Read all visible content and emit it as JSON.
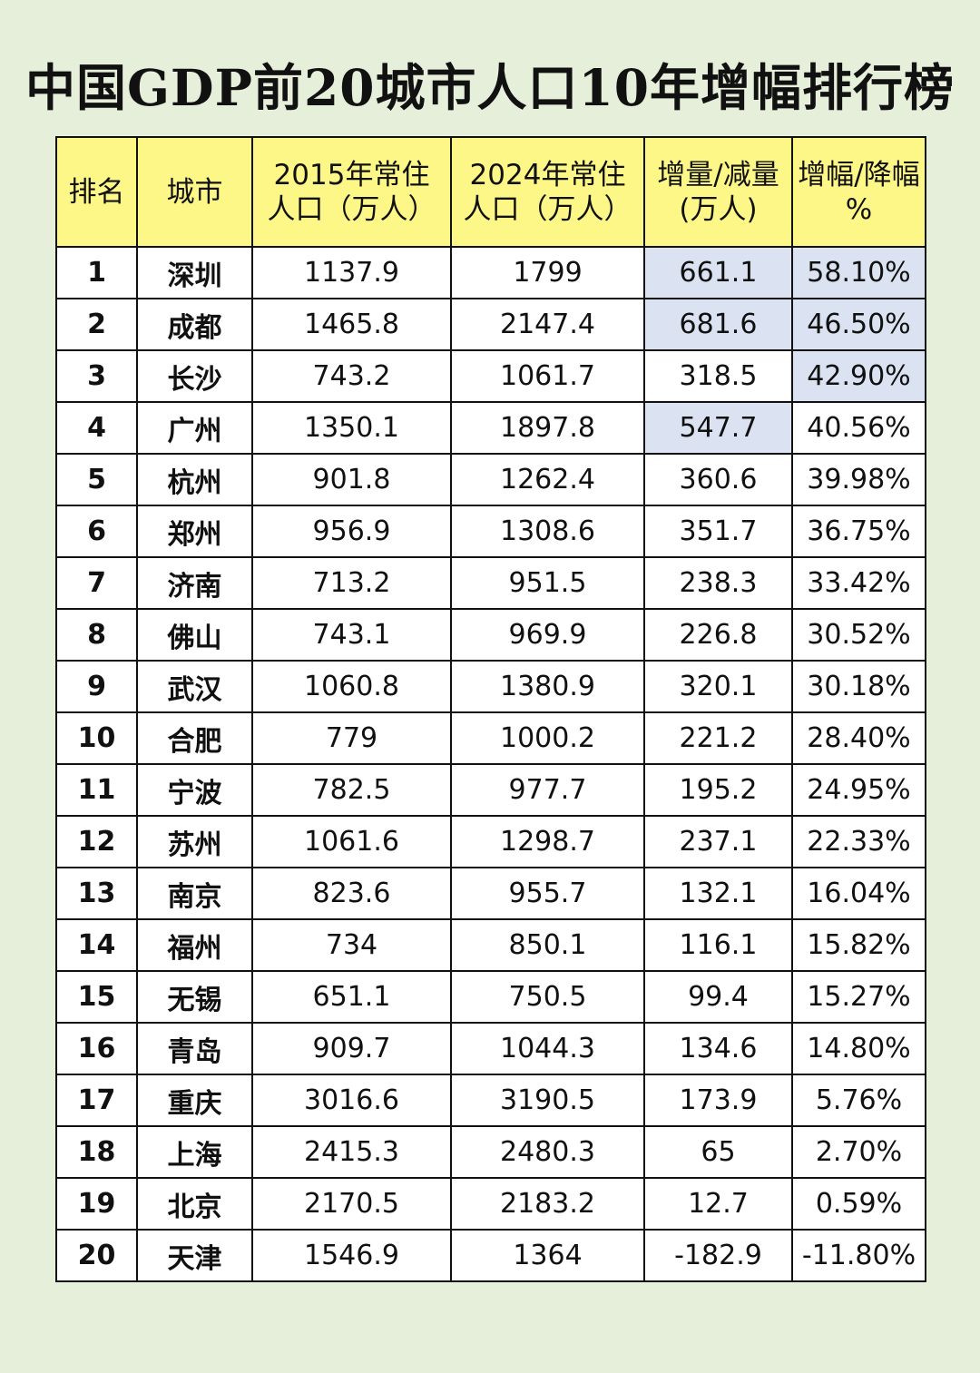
{
  "title": "中国GDP前20城市人口10年增幅排行榜",
  "columns": [
    [
      "排名"
    ],
    [
      "城市"
    ],
    [
      "2015年常住",
      "人口（万人）"
    ],
    [
      "2024年常住",
      "人口（万人）"
    ],
    [
      "增量/减量",
      "(万人)"
    ],
    [
      "增幅/降幅",
      "%"
    ]
  ],
  "highlight_color": "#dbe3f3",
  "header_color": "#fdf788",
  "rows": [
    {
      "rank": "1",
      "city": "深圳",
      "pop2015": "1137.9",
      "pop2024": "1799",
      "change": "661.1",
      "pct": "58.10%",
      "hl_change": true,
      "hl_pct": true
    },
    {
      "rank": "2",
      "city": "成都",
      "pop2015": "1465.8",
      "pop2024": "2147.4",
      "change": "681.6",
      "pct": "46.50%",
      "hl_change": true,
      "hl_pct": true
    },
    {
      "rank": "3",
      "city": "长沙",
      "pop2015": "743.2",
      "pop2024": "1061.7",
      "change": "318.5",
      "pct": "42.90%",
      "hl_change": false,
      "hl_pct": true
    },
    {
      "rank": "4",
      "city": "广州",
      "pop2015": "1350.1",
      "pop2024": "1897.8",
      "change": "547.7",
      "pct": "40.56%",
      "hl_change": true,
      "hl_pct": false
    },
    {
      "rank": "5",
      "city": "杭州",
      "pop2015": "901.8",
      "pop2024": "1262.4",
      "change": "360.6",
      "pct": "39.98%",
      "hl_change": false,
      "hl_pct": false
    },
    {
      "rank": "6",
      "city": "郑州",
      "pop2015": "956.9",
      "pop2024": "1308.6",
      "change": "351.7",
      "pct": "36.75%",
      "hl_change": false,
      "hl_pct": false
    },
    {
      "rank": "7",
      "city": "济南",
      "pop2015": "713.2",
      "pop2024": "951.5",
      "change": "238.3",
      "pct": "33.42%",
      "hl_change": false,
      "hl_pct": false
    },
    {
      "rank": "8",
      "city": "佛山",
      "pop2015": "743.1",
      "pop2024": "969.9",
      "change": "226.8",
      "pct": "30.52%",
      "hl_change": false,
      "hl_pct": false
    },
    {
      "rank": "9",
      "city": "武汉",
      "pop2015": "1060.8",
      "pop2024": "1380.9",
      "change": "320.1",
      "pct": "30.18%",
      "hl_change": false,
      "hl_pct": false
    },
    {
      "rank": "10",
      "city": "合肥",
      "pop2015": "779",
      "pop2024": "1000.2",
      "change": "221.2",
      "pct": "28.40%",
      "hl_change": false,
      "hl_pct": false
    },
    {
      "rank": "11",
      "city": "宁波",
      "pop2015": "782.5",
      "pop2024": "977.7",
      "change": "195.2",
      "pct": "24.95%",
      "hl_change": false,
      "hl_pct": false
    },
    {
      "rank": "12",
      "city": "苏州",
      "pop2015": "1061.6",
      "pop2024": "1298.7",
      "change": "237.1",
      "pct": "22.33%",
      "hl_change": false,
      "hl_pct": false
    },
    {
      "rank": "13",
      "city": "南京",
      "pop2015": "823.6",
      "pop2024": "955.7",
      "change": "132.1",
      "pct": "16.04%",
      "hl_change": false,
      "hl_pct": false
    },
    {
      "rank": "14",
      "city": "福州",
      "pop2015": "734",
      "pop2024": "850.1",
      "change": "116.1",
      "pct": "15.82%",
      "hl_change": false,
      "hl_pct": false
    },
    {
      "rank": "15",
      "city": "无锡",
      "pop2015": "651.1",
      "pop2024": "750.5",
      "change": "99.4",
      "pct": "15.27%",
      "hl_change": false,
      "hl_pct": false
    },
    {
      "rank": "16",
      "city": "青岛",
      "pop2015": "909.7",
      "pop2024": "1044.3",
      "change": "134.6",
      "pct": "14.80%",
      "hl_change": false,
      "hl_pct": false
    },
    {
      "rank": "17",
      "city": "重庆",
      "pop2015": "3016.6",
      "pop2024": "3190.5",
      "change": "173.9",
      "pct": "5.76%",
      "hl_change": false,
      "hl_pct": false
    },
    {
      "rank": "18",
      "city": "上海",
      "pop2015": "2415.3",
      "pop2024": "2480.3",
      "change": "65",
      "pct": "2.70%",
      "hl_change": false,
      "hl_pct": false
    },
    {
      "rank": "19",
      "city": "北京",
      "pop2015": "2170.5",
      "pop2024": "2183.2",
      "change": "12.7",
      "pct": "0.59%",
      "hl_change": false,
      "hl_pct": false
    },
    {
      "rank": "20",
      "city": "天津",
      "pop2015": "1546.9",
      "pop2024": "1364",
      "change": "-182.9",
      "pct": "-11.80%",
      "hl_change": false,
      "hl_pct": false
    }
  ]
}
